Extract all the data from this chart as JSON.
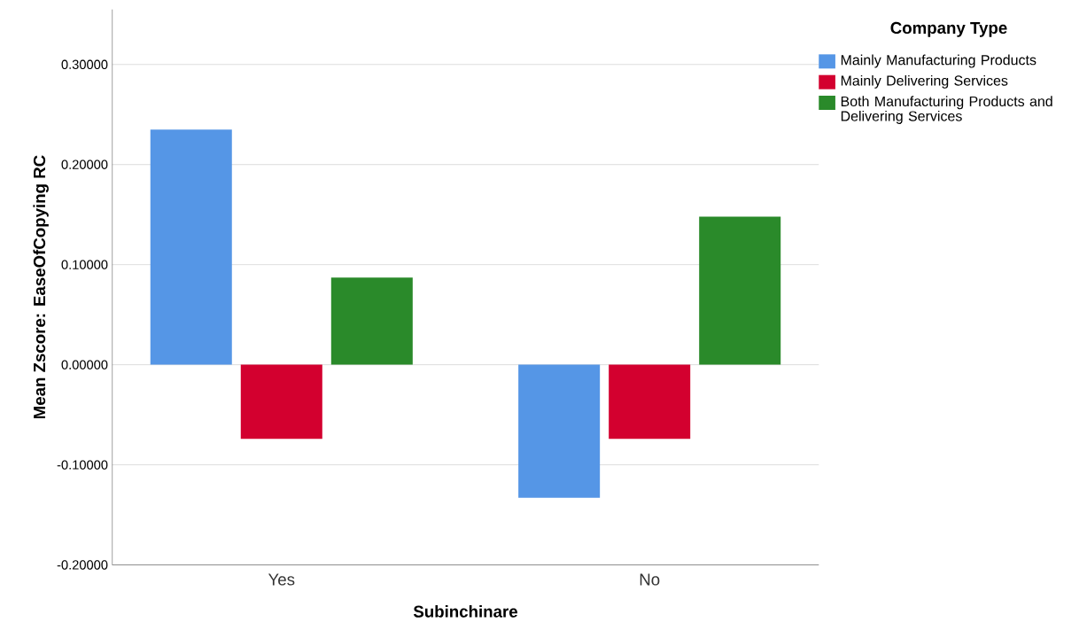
{
  "chart_data": {
    "type": "bar",
    "xlabel": "Subinchinare",
    "ylabel": "Mean Zscore:  EaseOfCopying RC",
    "legend_title": "Company Type",
    "categories": [
      "Yes",
      "No"
    ],
    "series": [
      {
        "name": "Mainly Manufacturing Products",
        "color": "#5596e6",
        "values": [
          0.235,
          -0.133
        ]
      },
      {
        "name": "Mainly Delivering Services",
        "color": "#d3002f",
        "values": [
          -0.074,
          -0.074
        ]
      },
      {
        "name": "Both Manufacturing Products and Delivering Services",
        "color": "#2a8a2a",
        "values": [
          0.087,
          0.148
        ]
      }
    ],
    "ylim": [
      -0.2,
      0.355
    ],
    "yticks": [
      {
        "value": -0.2,
        "label": "-0.20000"
      },
      {
        "value": -0.1,
        "label": "-0.10000"
      },
      {
        "value": 0,
        "label": "0.00000"
      },
      {
        "value": 0.1,
        "label": "0.10000"
      },
      {
        "value": 0.2,
        "label": "0.20000"
      },
      {
        "value": 0.3,
        "label": "0.30000"
      }
    ],
    "grid": "y",
    "legend": "top right"
  }
}
